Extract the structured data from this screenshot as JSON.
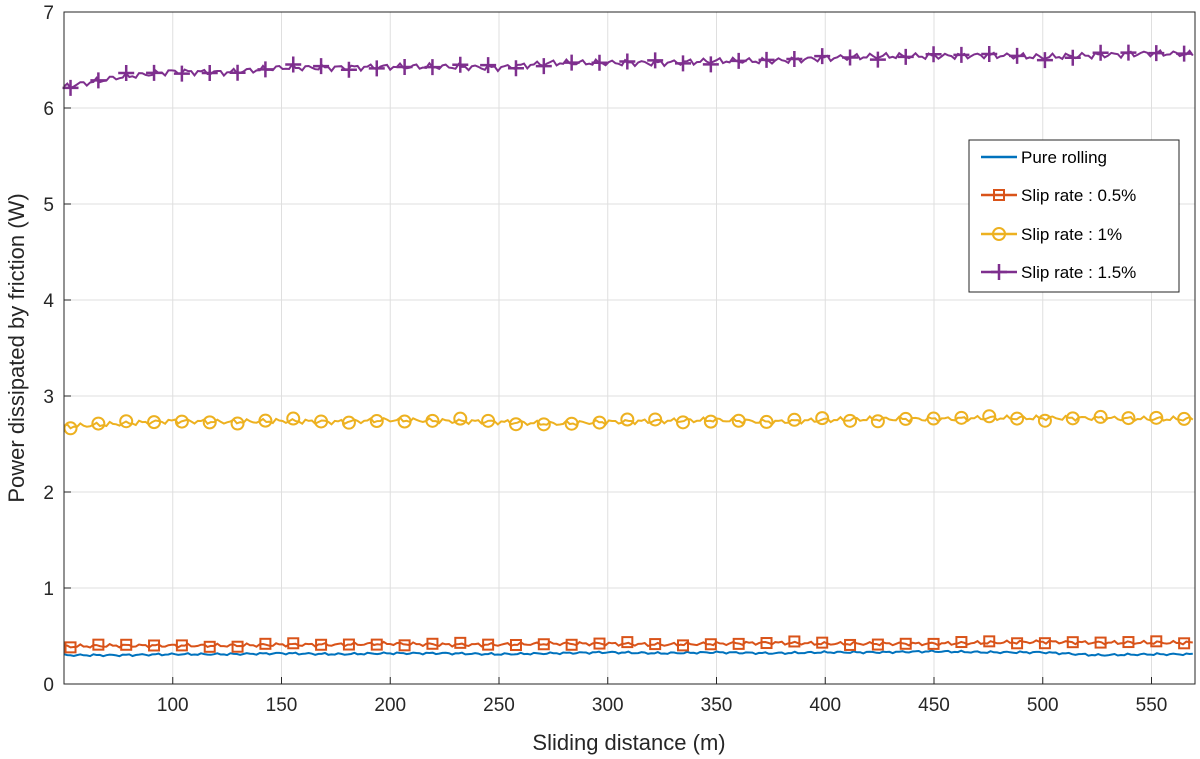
{
  "chart_data": {
    "type": "line",
    "title": "",
    "xlabel": "Sliding distance (m)",
    "ylabel": "Power dissipated by friction (W)",
    "xlim": [
      50,
      570
    ],
    "ylim": [
      0,
      7
    ],
    "xticks": [
      100,
      150,
      200,
      250,
      300,
      350,
      400,
      450,
      500,
      550
    ],
    "yticks": [
      0,
      1,
      2,
      3,
      4,
      5,
      6,
      7
    ],
    "grid": true,
    "legend_position": "right",
    "x": [
      50,
      75,
      100,
      125,
      150,
      175,
      200,
      225,
      250,
      275,
      300,
      325,
      350,
      375,
      400,
      425,
      450,
      475,
      500,
      525,
      550,
      570
    ],
    "series": [
      {
        "name": "Pure rolling",
        "color": "#0072BD",
        "marker": "none",
        "values": [
          0.3,
          0.3,
          0.31,
          0.31,
          0.32,
          0.31,
          0.32,
          0.32,
          0.31,
          0.32,
          0.33,
          0.32,
          0.33,
          0.32,
          0.33,
          0.33,
          0.34,
          0.33,
          0.33,
          0.3,
          0.31,
          0.31
        ]
      },
      {
        "name": "Slip rate : 0.5%",
        "color": "#D95319",
        "marker": "square",
        "values": [
          0.39,
          0.4,
          0.4,
          0.4,
          0.41,
          0.41,
          0.42,
          0.41,
          0.41,
          0.42,
          0.42,
          0.41,
          0.42,
          0.43,
          0.42,
          0.42,
          0.42,
          0.43,
          0.44,
          0.43,
          0.43,
          0.43
        ]
      },
      {
        "name": "Slip rate : 1%",
        "color": "#EDB120",
        "marker": "circle",
        "values": [
          2.68,
          2.71,
          2.74,
          2.73,
          2.74,
          2.73,
          2.75,
          2.74,
          2.73,
          2.71,
          2.73,
          2.74,
          2.75,
          2.73,
          2.75,
          2.76,
          2.76,
          2.77,
          2.77,
          2.77,
          2.76,
          2.76
        ]
      },
      {
        "name": "Slip rate : 1.5%",
        "color": "#7E2F8E",
        "marker": "plus",
        "values": [
          6.22,
          6.32,
          6.38,
          6.37,
          6.42,
          6.42,
          6.43,
          6.43,
          6.42,
          6.47,
          6.47,
          6.47,
          6.49,
          6.49,
          6.52,
          6.54,
          6.54,
          6.55,
          6.53,
          6.55,
          6.57,
          6.56
        ]
      }
    ]
  }
}
